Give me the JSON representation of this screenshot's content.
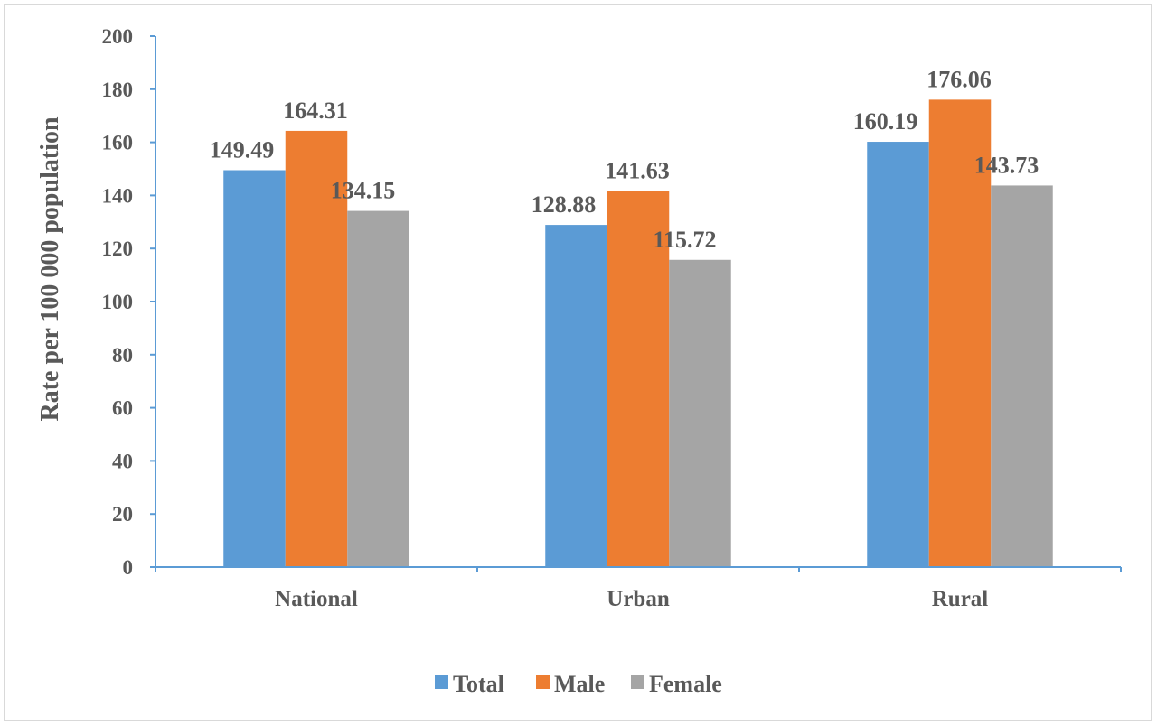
{
  "chart_data": {
    "type": "bar",
    "title": "",
    "xlabel": "",
    "ylabel": "Rate per 100 000 population",
    "ylim": [
      0,
      200
    ],
    "yticks": [
      0,
      20,
      40,
      60,
      80,
      100,
      120,
      140,
      160,
      180,
      200
    ],
    "grid": false,
    "legend_position": "bottom",
    "categories": [
      "National",
      "Urban",
      "Rural"
    ],
    "series": [
      {
        "name": "Total",
        "values": [
          149.49,
          128.88,
          160.19
        ],
        "color": "#5b9bd5"
      },
      {
        "name": "Male",
        "values": [
          164.31,
          141.63,
          176.06
        ],
        "color": "#ed7d31"
      },
      {
        "name": "Female",
        "values": [
          134.15,
          115.72,
          143.73
        ],
        "color": "#a5a5a5"
      }
    ],
    "data_labels": [
      [
        "149.49",
        "128.88",
        "160.19"
      ],
      [
        "164.31",
        "141.63",
        "176.06"
      ],
      [
        "134.15",
        "115.72",
        "143.73"
      ]
    ],
    "axis_color": "#5b9bd5"
  }
}
